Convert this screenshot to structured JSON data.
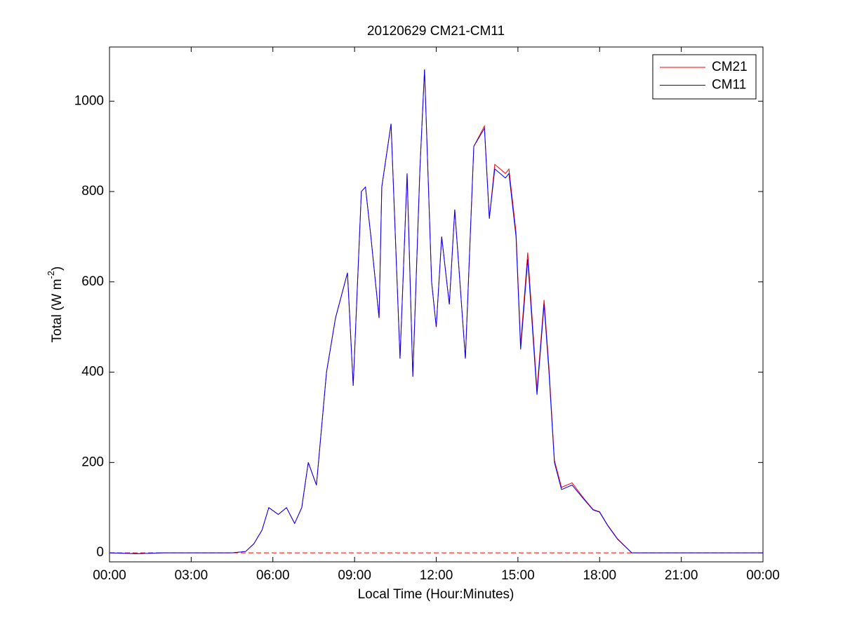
{
  "chart_data": {
    "type": "line",
    "title": "20120629 CM21-CM11",
    "xlabel": "Local Time (Hour:Minutes)",
    "ylabel": {
      "text": "Total (W m",
      "sup": "-2",
      "end": ")"
    },
    "x": [
      0,
      1,
      2,
      3,
      4,
      4.5,
      5.0,
      5.3,
      5.6,
      5.85,
      6.2,
      6.5,
      6.8,
      7.06,
      7.3,
      7.6,
      7.97,
      8.3,
      8.74,
      8.95,
      9.25,
      9.4,
      9.6,
      9.9,
      10.0,
      10.34,
      10.67,
      10.93,
      11.14,
      11.4,
      11.57,
      11.83,
      12.0,
      12.2,
      12.48,
      12.68,
      13.07,
      13.38,
      13.77,
      13.95,
      14.15,
      14.54,
      14.67,
      14.93,
      15.1,
      15.36,
      15.7,
      15.96,
      16.14,
      16.34,
      16.6,
      16.99,
      17.4,
      17.76,
      18.0,
      18.3,
      18.66,
      19.18,
      20,
      21,
      22,
      23,
      24
    ],
    "series": [
      {
        "name": "CM21",
        "color": "#ff0000",
        "values": [
          0,
          -2,
          0,
          0,
          0,
          0,
          3,
          20,
          50,
          100,
          85,
          100,
          65,
          100,
          200,
          150,
          400,
          520,
          620,
          370,
          800,
          810,
          700,
          520,
          810,
          950,
          430,
          840,
          390,
          850,
          1070,
          600,
          500,
          700,
          550,
          760,
          430,
          900,
          945,
          740,
          860,
          840,
          850,
          710,
          460,
          665,
          360,
          560,
          410,
          205,
          145,
          155,
          122,
          96,
          91,
          61,
          31,
          0,
          0,
          0,
          0,
          0,
          0
        ]
      },
      {
        "name": "CM11",
        "color": "#0000ff",
        "values": [
          0,
          -2,
          0,
          0,
          0,
          0,
          3,
          20,
          50,
          100,
          85,
          100,
          65,
          100,
          200,
          150,
          400,
          520,
          620,
          370,
          800,
          810,
          700,
          520,
          810,
          950,
          430,
          840,
          390,
          850,
          1070,
          600,
          500,
          700,
          550,
          760,
          430,
          900,
          940,
          740,
          850,
          830,
          840,
          700,
          450,
          650,
          350,
          550,
          400,
          200,
          140,
          150,
          120,
          95,
          90,
          60,
          30,
          0,
          0,
          0,
          0,
          0,
          0
        ]
      }
    ],
    "reference_line": {
      "value": 0,
      "color": "#ff0000",
      "style": "dashed"
    },
    "xlim": [
      0,
      24
    ],
    "xticks": [
      {
        "value": 0,
        "label": "00:00"
      },
      {
        "value": 3,
        "label": "03:00"
      },
      {
        "value": 6,
        "label": "06:00"
      },
      {
        "value": 9,
        "label": "09:00"
      },
      {
        "value": 12,
        "label": "12:00"
      },
      {
        "value": 15,
        "label": "15:00"
      },
      {
        "value": 18,
        "label": "18:00"
      },
      {
        "value": 21,
        "label": "21:00"
      },
      {
        "value": 24,
        "label": "00:00"
      }
    ],
    "ylim": [
      -20,
      1120
    ],
    "yticks": [
      0,
      200,
      400,
      600,
      800,
      1000
    ],
    "legend": "top-right",
    "grid": false
  }
}
